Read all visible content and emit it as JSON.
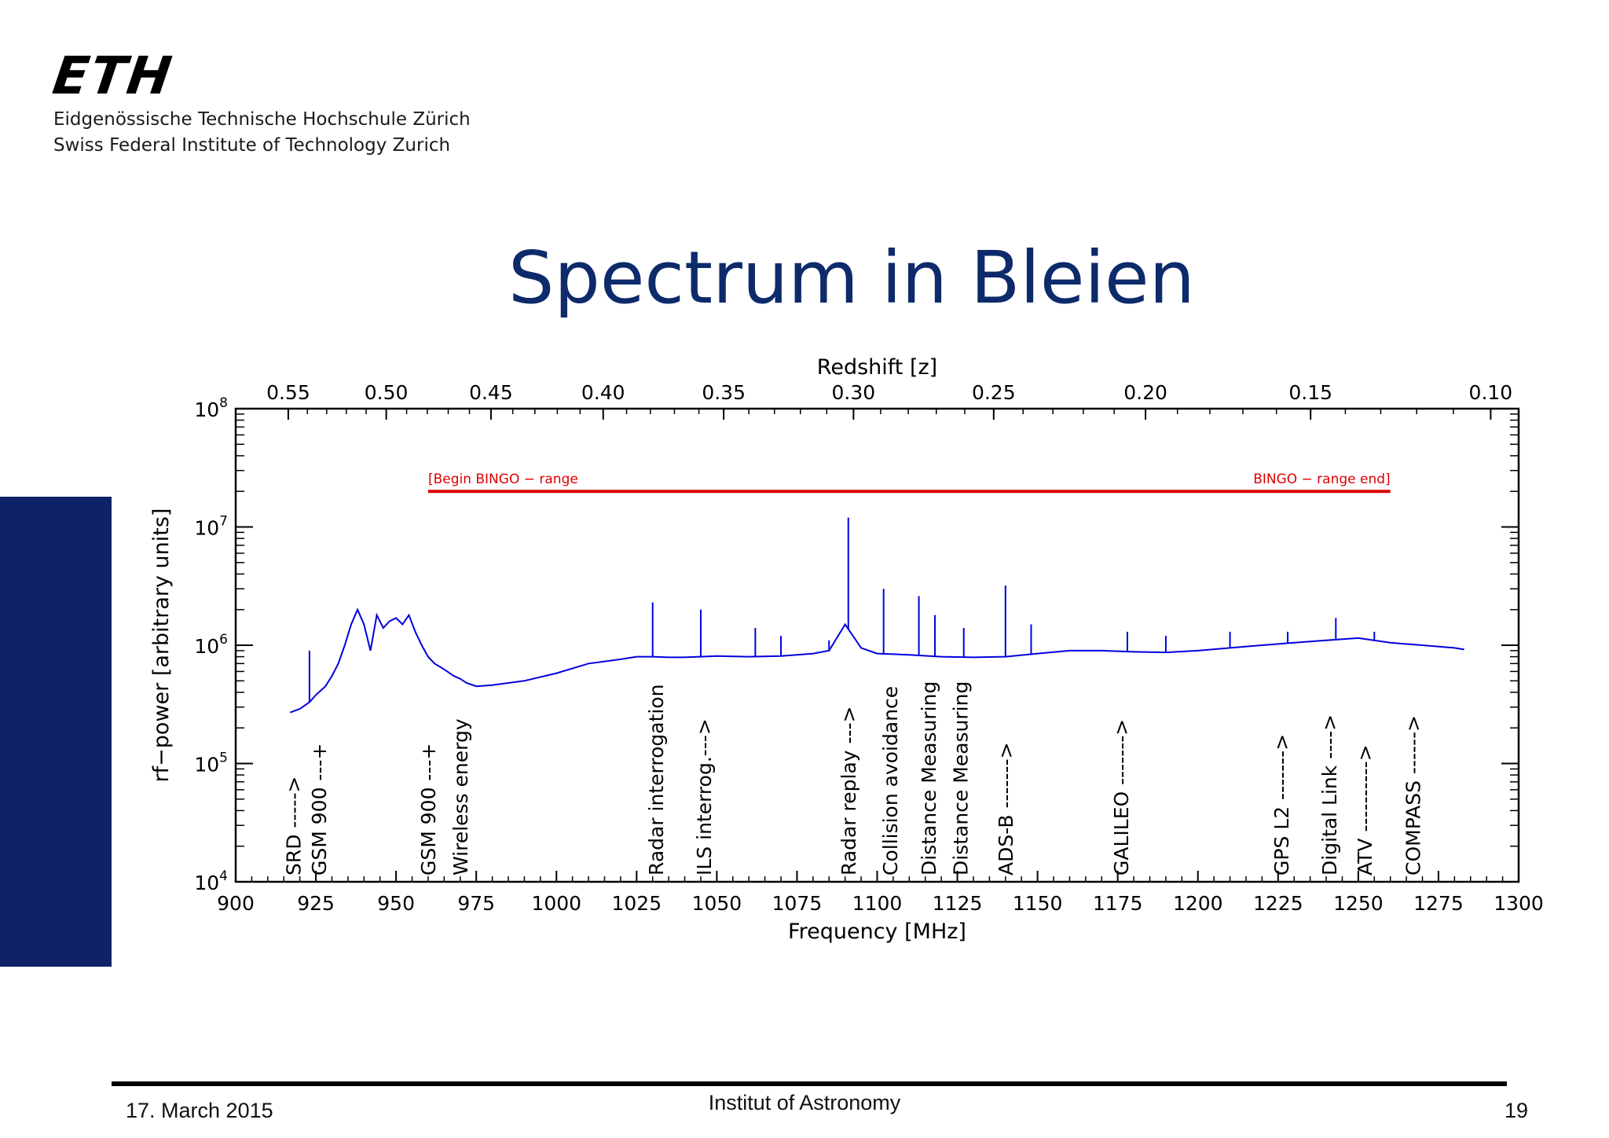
{
  "header": {
    "logo": "ETH",
    "institution_de": "Eidgenössische Technische Hochschule Zürich",
    "institution_en": "Swiss Federal Institute of Technology Zurich"
  },
  "slide": {
    "title": "Spectrum in Bleien"
  },
  "footer": {
    "date": "17. March 2015",
    "institute": "Institut of Astronomy",
    "page": "19"
  },
  "colors": {
    "accent": "#0d2366",
    "title": "#0d2a6b",
    "spectrum": "#0000dd",
    "band": "#dd0000"
  },
  "chart_data": {
    "type": "line",
    "xlabel": "Frequency [MHz]",
    "ylabel": "rf−power [arbitrary units]",
    "x2label": "Redshift [z]",
    "xlim": [
      900,
      1300
    ],
    "ylim": [
      10000,
      100000000
    ],
    "yscale": "log",
    "x_ticks": [
      "900",
      "925",
      "950",
      "975",
      "1000",
      "1025",
      "1050",
      "1075",
      "1100",
      "1125",
      "1150",
      "1175",
      "1200",
      "1225",
      "1250",
      "1275",
      "1300"
    ],
    "y_ticks": [
      {
        "value": 10000,
        "base": "10",
        "exp": "4"
      },
      {
        "value": 100000,
        "base": "10",
        "exp": "5"
      },
      {
        "value": 1000000,
        "base": "10",
        "exp": "6"
      },
      {
        "value": 10000000,
        "base": "10",
        "exp": "7"
      },
      {
        "value": 100000000,
        "base": "10",
        "exp": "8"
      }
    ],
    "z_ticks": [
      "0.55",
      "0.50",
      "0.45",
      "0.40",
      "0.35",
      "0.30",
      "0.25",
      "0.20",
      "0.15",
      "0.10"
    ],
    "band": {
      "start_label": "[Begin BINGO − range",
      "end_label": "BINGO − range end]",
      "start": 960,
      "end": 1260,
      "level": 20000000
    },
    "series": [
      {
        "x": [
          917,
          920,
          923,
          925,
          928,
          930,
          932,
          934,
          936,
          938,
          940,
          942,
          944,
          946,
          948,
          950,
          952,
          954,
          956,
          958,
          960,
          962,
          964,
          966,
          968,
          970,
          972,
          975,
          980,
          990,
          1000,
          1010,
          1020,
          1025,
          1030,
          1035,
          1040,
          1050,
          1060,
          1070,
          1080,
          1085,
          1090,
          1095,
          1100,
          1110,
          1120,
          1130,
          1140,
          1150,
          1160,
          1170,
          1180,
          1190,
          1200,
          1210,
          1220,
          1230,
          1240,
          1250,
          1260,
          1270,
          1280,
          1283
        ],
        "y": [
          270000,
          290000,
          330000,
          380000,
          450000,
          550000,
          700000,
          1000000,
          1500000,
          2000000,
          1500000,
          900000,
          1800000,
          1400000,
          1600000,
          1700000,
          1500000,
          1800000,
          1300000,
          1000000,
          800000,
          700000,
          650000,
          600000,
          550000,
          520000,
          480000,
          450000,
          460000,
          500000,
          580000,
          700000,
          760000,
          800000,
          800000,
          790000,
          790000,
          810000,
          800000,
          810000,
          850000,
          900000,
          1500000,
          950000,
          850000,
          830000,
          800000,
          790000,
          800000,
          850000,
          900000,
          900000,
          880000,
          870000,
          900000,
          950000,
          1000000,
          1050000,
          1100000,
          1150000,
          1050000,
          1000000,
          950000,
          920000
        ]
      }
    ],
    "spikes": [
      {
        "x": 923,
        "y": 900000
      },
      {
        "x": 1030,
        "y": 2300000
      },
      {
        "x": 1045,
        "y": 2000000
      },
      {
        "x": 1062,
        "y": 1400000
      },
      {
        "x": 1070,
        "y": 1200000
      },
      {
        "x": 1085,
        "y": 1100000
      },
      {
        "x": 1091,
        "y": 12000000
      },
      {
        "x": 1102,
        "y": 3000000
      },
      {
        "x": 1113,
        "y": 2600000
      },
      {
        "x": 1118,
        "y": 1800000
      },
      {
        "x": 1127,
        "y": 1400000
      },
      {
        "x": 1140,
        "y": 3200000
      },
      {
        "x": 1148,
        "y": 1500000
      },
      {
        "x": 1178,
        "y": 1300000
      },
      {
        "x": 1190,
        "y": 1200000
      },
      {
        "x": 1210,
        "y": 1300000
      },
      {
        "x": 1228,
        "y": 1300000
      },
      {
        "x": 1243,
        "y": 1700000
      },
      {
        "x": 1255,
        "y": 1300000
      }
    ],
    "annotations": [
      {
        "label": "SRD ----->",
        "x": 918
      },
      {
        "label": "GSM 900 ---+",
        "x": 926
      },
      {
        "label": "GSM 900 ---+",
        "x": 960
      },
      {
        "label": "Wireless energy",
        "x": 970
      },
      {
        "label": "Radar interrogation",
        "x": 1031
      },
      {
        "label": "ILS interrog.--->",
        "x": 1046
      },
      {
        "label": "Radar replay --->",
        "x": 1091
      },
      {
        "label": "Collision avoidance",
        "x": 1104
      },
      {
        "label": "Distance Measuring",
        "x": 1116
      },
      {
        "label": "Distance Measuring",
        "x": 1126
      },
      {
        "label": "ADS-B ------->",
        "x": 1140
      },
      {
        "label": "GALILEO ------->",
        "x": 1176
      },
      {
        "label": "GPS L2 ------->",
        "x": 1226
      },
      {
        "label": "Digital Link ---->",
        "x": 1241
      },
      {
        "label": "ATV ---------->",
        "x": 1252
      },
      {
        "label": "COMPASS ------>",
        "x": 1267
      }
    ]
  }
}
